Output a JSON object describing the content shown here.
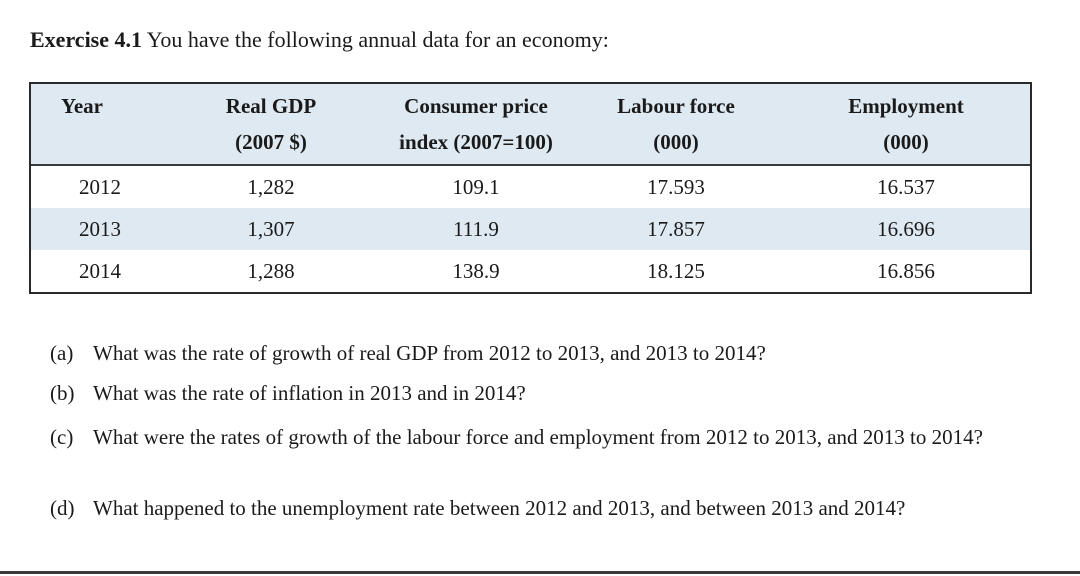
{
  "heading": {
    "label": "Exercise 4.1",
    "text": "You have the following annual data for an economy:"
  },
  "table": {
    "headers": [
      [
        "Year"
      ],
      [
        "Real GDP",
        "(2007 $)"
      ],
      [
        "Consumer price",
        "index (2007=100)"
      ],
      [
        "Labour force",
        "(000)"
      ],
      [
        "Employment",
        "(000)"
      ]
    ],
    "rows": [
      [
        "2012",
        "1,282",
        "109.1",
        "17.593",
        "16.537"
      ],
      [
        "2013",
        "1,307",
        "111.9",
        "17.857",
        "16.696"
      ],
      [
        "2014",
        "1,288",
        "138.9",
        "18.125",
        "16.856"
      ]
    ],
    "colors": {
      "header_bg": "#dfe9f1",
      "stripe_bg": "#dfe9f1"
    }
  },
  "questions": [
    {
      "label": "(a)",
      "text": "What was the rate of growth of real GDP from 2012 to 2013, and 2013 to 2014?"
    },
    {
      "label": "(b)",
      "text": "What was the rate of inflation in 2013 and in 2014?"
    },
    {
      "label": "(c)",
      "text": "What were the rates of growth of the labour force and employment from 2012 to 2013, and 2013 to 2014?"
    },
    {
      "label": "(d)",
      "text": "What happened to the unemployment rate between 2012 and 2013, and between 2013 and 2014?"
    }
  ]
}
